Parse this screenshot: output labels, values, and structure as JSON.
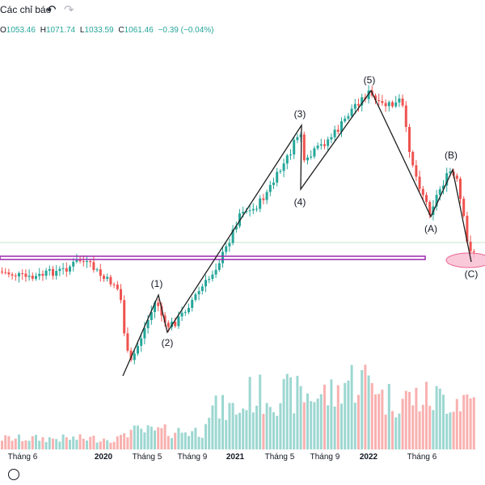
{
  "toolbar": {
    "indicators_label": "Các chỉ báo",
    "undo_icon": "undo-icon",
    "redo_icon": "redo-icon"
  },
  "legend": {
    "o_label": "O",
    "o_value": "1053.46",
    "h_label": "H",
    "h_value": "1071.74",
    "l_label": "L",
    "l_value": "1033.59",
    "c_label": "C",
    "c_value": "1061.46",
    "change": "−0.39 (−0.04%)"
  },
  "colors": {
    "up": "#26a69a",
    "down": "#ef5350",
    "wave_line": "#1e1e1e",
    "support_band": "#9c27b0",
    "ellipse_fill": "#f8bbd0",
    "ellipse_stroke": "#ec407a"
  },
  "wave_labels": [
    "(1)",
    "(2)",
    "(3)",
    "(4)",
    "(5)",
    "(A)",
    "(B)",
    "(C)"
  ],
  "x_axis": {
    "labels": [
      "Tháng 6",
      "2020",
      "Tháng 5",
      "Tháng 9",
      "2021",
      "Tháng 5",
      "Tháng 9",
      "2022",
      "Tháng 6"
    ],
    "bold": [
      false,
      true,
      false,
      false,
      true,
      false,
      false,
      true,
      false
    ]
  },
  "chart_data": {
    "type": "candlestick",
    "series_note": "weekly candles with volume histogram and hand-drawn Elliott wave annotation",
    "last": {
      "open": 1053.46,
      "high": 1071.74,
      "low": 1033.59,
      "close": 1061.46,
      "change": -0.39,
      "change_pct": -0.04
    }
  },
  "footer": {
    "logo_icon": "tradingview-logo-icon"
  }
}
